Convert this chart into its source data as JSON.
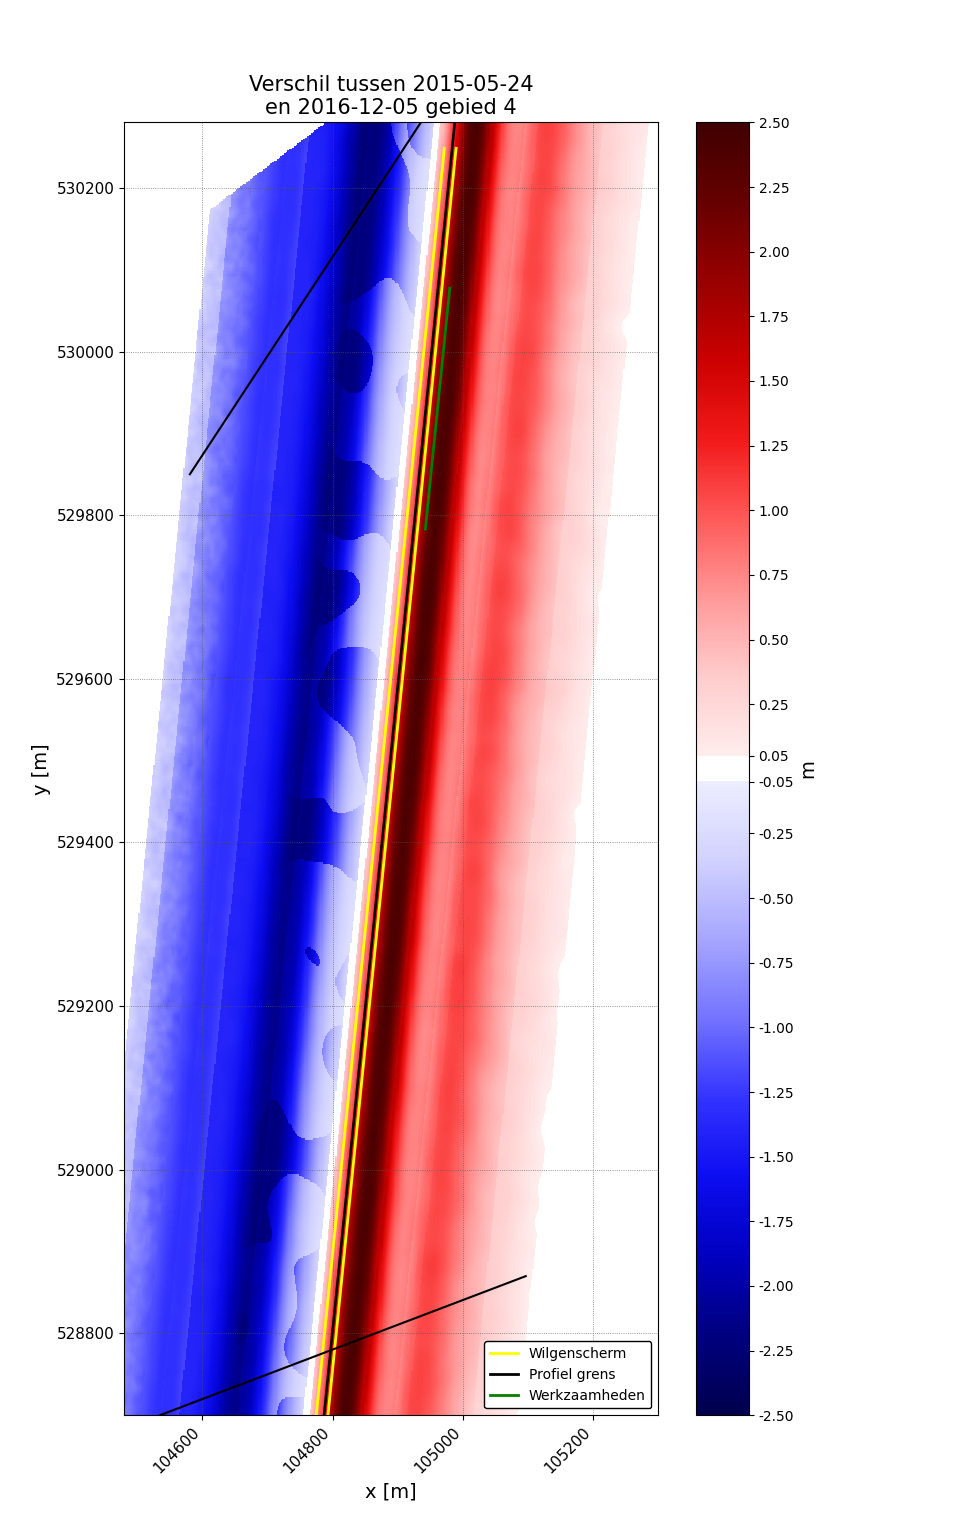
{
  "title_line1": "Verschil tussen 2015-05-24",
  "title_line2": "en 2016-12-05 gebied 4",
  "xlabel": "x [m]",
  "ylabel": "y [m]",
  "colorbar_label": "m",
  "colorbar_ticks": [
    2.5,
    2.25,
    2.0,
    1.75,
    1.5,
    1.25,
    1.0,
    0.75,
    0.5,
    0.25,
    0.05,
    -0.05,
    -0.25,
    -0.5,
    -0.75,
    -1.0,
    -1.25,
    -1.5,
    -1.75,
    -2.0,
    -2.25,
    -2.5
  ],
  "vmin": -2.5,
  "vmax": 2.5,
  "xlim": [
    104480,
    105300
  ],
  "ylim": [
    528700,
    530280
  ],
  "xticks": [
    104600,
    104800,
    105000,
    105200
  ],
  "yticks": [
    528800,
    529000,
    529200,
    529400,
    529600,
    529800,
    530000,
    530200
  ],
  "legend_items": [
    {
      "label": "Wilgenscherm",
      "color": "yellow",
      "lw": 2
    },
    {
      "label": "Profiel grens",
      "color": "black",
      "lw": 2
    },
    {
      "label": "Werkzaamheden",
      "color": "green",
      "lw": 2
    }
  ],
  "background_color": "white",
  "figsize": [
    9.54,
    15.3
  ],
  "dpi": 100,
  "title_fontsize": 15,
  "label_fontsize": 14,
  "tick_fontsize": 11,
  "cbar_tick_fontsize": 10
}
